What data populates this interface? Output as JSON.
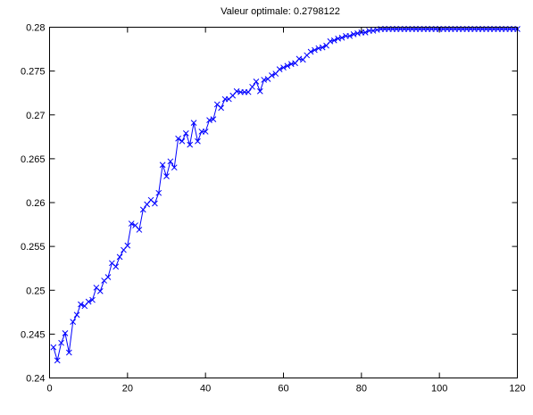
{
  "chart_data": {
    "type": "line",
    "title": "Valeur optimale: 0.2798122",
    "xlabel": "",
    "ylabel": "",
    "xlim": [
      0,
      120
    ],
    "ylim": [
      0.24,
      0.28
    ],
    "xticks": [
      0,
      20,
      40,
      60,
      80,
      100,
      120
    ],
    "yticks": [
      0.24,
      0.245,
      0.25,
      0.255,
      0.26,
      0.265,
      0.27,
      0.275,
      0.28
    ],
    "xtick_labels": [
      "0",
      "20",
      "40",
      "60",
      "80",
      "100",
      "120"
    ],
    "ytick_labels": [
      "0.24",
      "0.245",
      "0.25",
      "0.255",
      "0.26",
      "0.265",
      "0.27",
      "0.275",
      "0.28"
    ],
    "grid": false,
    "marker": "x",
    "line_color": "#0000ff",
    "series": [
      {
        "x": [
          1,
          2,
          3,
          4,
          5,
          6,
          7,
          8,
          9,
          10,
          11,
          12,
          13,
          14,
          15,
          16,
          17,
          18,
          19,
          20,
          21,
          22,
          23,
          24,
          25,
          26,
          27,
          28,
          29,
          30,
          31,
          32,
          33,
          34,
          35,
          36,
          37,
          38,
          39,
          40,
          41,
          42,
          43,
          44,
          45,
          46,
          47,
          48,
          49,
          50,
          51,
          52,
          53,
          54,
          55,
          56,
          57,
          58,
          59,
          60,
          61,
          62,
          63,
          64,
          65,
          66,
          67,
          68,
          69,
          70,
          71,
          72,
          73,
          74,
          75,
          76,
          77,
          78,
          79,
          80,
          81,
          82,
          83,
          84,
          85,
          86,
          87,
          88,
          89,
          90,
          91,
          92,
          93,
          94,
          95,
          96,
          97,
          98,
          99,
          100,
          101,
          102,
          103,
          104,
          105,
          106,
          107,
          108,
          109,
          110,
          111,
          112,
          113,
          114,
          115,
          116,
          117,
          118,
          119,
          120
        ],
        "values": [
          0.2435,
          0.242,
          0.244,
          0.2451,
          0.2429,
          0.2464,
          0.2472,
          0.2484,
          0.2482,
          0.2487,
          0.2489,
          0.2503,
          0.2499,
          0.2511,
          0.2515,
          0.2531,
          0.2527,
          0.2538,
          0.2546,
          0.2551,
          0.2576,
          0.2574,
          0.2569,
          0.2592,
          0.2598,
          0.2603,
          0.2599,
          0.2611,
          0.2643,
          0.263,
          0.2647,
          0.264,
          0.2673,
          0.267,
          0.2679,
          0.2666,
          0.2691,
          0.267,
          0.2681,
          0.2681,
          0.2694,
          0.2695,
          0.2712,
          0.2708,
          0.2718,
          0.2718,
          0.2722,
          0.2727,
          0.2726,
          0.2726,
          0.2726,
          0.2732,
          0.2738,
          0.2727,
          0.274,
          0.2741,
          0.2745,
          0.2747,
          0.2752,
          0.2754,
          0.2756,
          0.2758,
          0.2759,
          0.2764,
          0.2763,
          0.2768,
          0.2772,
          0.2774,
          0.2776,
          0.2777,
          0.2779,
          0.2784,
          0.2785,
          0.2787,
          0.2788,
          0.279,
          0.279,
          0.2792,
          0.2793,
          0.2794,
          0.2794,
          0.2796,
          0.2796,
          0.2797,
          0.2798,
          0.2798,
          0.2798,
          0.2798,
          0.2798,
          0.2798,
          0.2798,
          0.2798,
          0.2798,
          0.2798,
          0.2798,
          0.2798,
          0.2798,
          0.2798,
          0.2798,
          0.2798,
          0.2798,
          0.2798,
          0.2798,
          0.2798,
          0.2798,
          0.2798,
          0.2798,
          0.2798,
          0.2798,
          0.2798,
          0.2798,
          0.2798,
          0.2798,
          0.2798,
          0.2798,
          0.2798,
          0.2798,
          0.2798,
          0.2798,
          0.2798
        ]
      }
    ]
  }
}
